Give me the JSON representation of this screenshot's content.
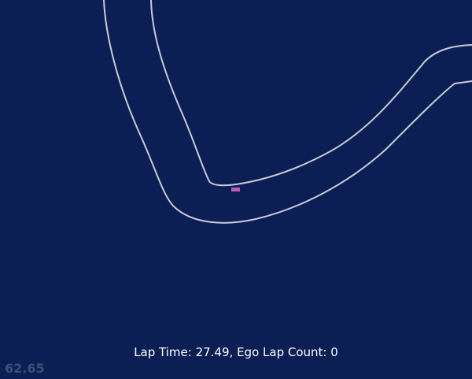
{
  "hud": {
    "lap_time_label": "Lap Time",
    "lap_time": "27.49",
    "lap_count_label": "Ego Lap Count",
    "lap_count": "0",
    "fps": "62.65"
  },
  "colors": {
    "background": "#0c1f55",
    "track_line": "#c8cbd6",
    "ego_car": "#c05bbd",
    "hud_text": "#ffffff",
    "fps_text": "#3f4e78"
  }
}
